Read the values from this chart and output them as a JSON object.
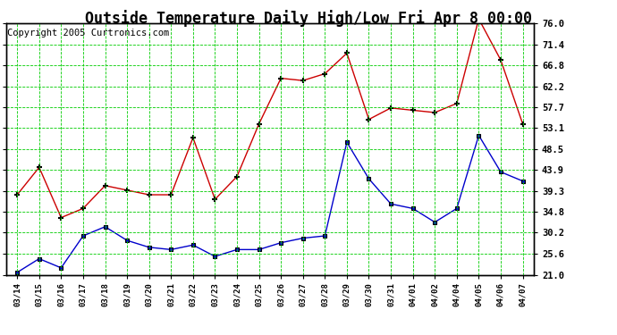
{
  "title": "Outside Temperature Daily High/Low Fri Apr 8 00:00",
  "copyright": "Copyright 2005 Curtronics.com",
  "labels": [
    "03/14",
    "03/15",
    "03/16",
    "03/17",
    "03/18",
    "03/19",
    "03/20",
    "03/21",
    "03/22",
    "03/23",
    "03/24",
    "03/25",
    "03/26",
    "03/27",
    "03/28",
    "03/29",
    "03/30",
    "03/31",
    "04/01",
    "04/02",
    "04/04",
    "04/05",
    "04/06",
    "04/07"
  ],
  "high_temps": [
    38.5,
    44.5,
    33.5,
    35.5,
    40.5,
    39.5,
    38.5,
    38.5,
    51.0,
    37.5,
    42.5,
    54.0,
    64.0,
    63.5,
    65.0,
    69.5,
    55.0,
    57.5,
    57.0,
    56.5,
    58.5,
    77.0,
    68.0,
    54.0
  ],
  "low_temps": [
    21.5,
    24.5,
    22.5,
    29.5,
    31.5,
    28.5,
    27.0,
    26.5,
    27.5,
    25.0,
    26.5,
    26.5,
    28.0,
    29.0,
    29.5,
    50.0,
    42.0,
    36.5,
    35.5,
    32.5,
    35.5,
    51.5,
    43.5,
    41.5
  ],
  "high_color": "#cc0000",
  "low_color": "#0000cc",
  "bg_color": "#ffffff",
  "grid_color": "#00cc00",
  "ylim_min": 21.0,
  "ylim_max": 76.0,
  "yticks": [
    21.0,
    25.6,
    30.2,
    34.8,
    39.3,
    43.9,
    48.5,
    53.1,
    57.7,
    62.2,
    66.8,
    71.4,
    76.0
  ],
  "title_fontsize": 12,
  "copyright_fontsize": 7.5
}
